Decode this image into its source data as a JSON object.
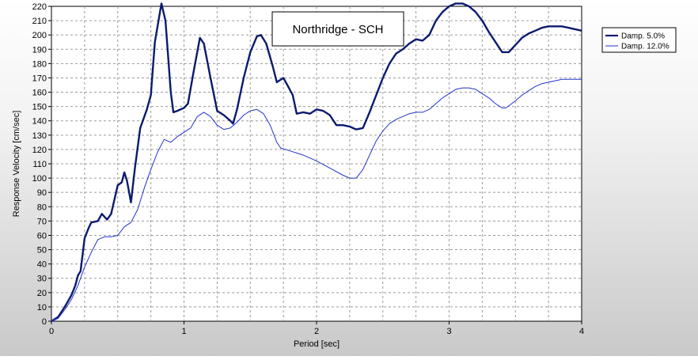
{
  "chart_data": {
    "type": "line",
    "title": "Northridge - SCH",
    "xlabel": "Period [sec]",
    "ylabel": "Response Velocity [cm/sec]",
    "xlim": [
      0,
      4
    ],
    "ylim": [
      0,
      220
    ],
    "xticks": [
      0,
      1,
      2,
      3,
      4
    ],
    "yticks": [
      0,
      10,
      20,
      30,
      40,
      50,
      60,
      70,
      80,
      90,
      100,
      110,
      120,
      130,
      140,
      150,
      160,
      170,
      180,
      190,
      200,
      210,
      220
    ],
    "grid": true,
    "legend_position": "top-right",
    "series": [
      {
        "name": "Damp. 5.0%",
        "color": "#0b1b6e",
        "points": [
          [
            0,
            0
          ],
          [
            0.05,
            3
          ],
          [
            0.1,
            10
          ],
          [
            0.15,
            18
          ],
          [
            0.18,
            25
          ],
          [
            0.2,
            32
          ],
          [
            0.22,
            35
          ],
          [
            0.25,
            58
          ],
          [
            0.28,
            65
          ],
          [
            0.3,
            69
          ],
          [
            0.35,
            70
          ],
          [
            0.38,
            75
          ],
          [
            0.42,
            71
          ],
          [
            0.45,
            75
          ],
          [
            0.5,
            95
          ],
          [
            0.53,
            97
          ],
          [
            0.55,
            104
          ],
          [
            0.57,
            98
          ],
          [
            0.6,
            83
          ],
          [
            0.63,
            107
          ],
          [
            0.67,
            135
          ],
          [
            0.72,
            148
          ],
          [
            0.75,
            158
          ],
          [
            0.78,
            195
          ],
          [
            0.83,
            222
          ],
          [
            0.86,
            210
          ],
          [
            0.9,
            160
          ],
          [
            0.92,
            146
          ],
          [
            0.95,
            147
          ],
          [
            1.0,
            149
          ],
          [
            1.03,
            152
          ],
          [
            1.07,
            173
          ],
          [
            1.12,
            198
          ],
          [
            1.15,
            194
          ],
          [
            1.2,
            170
          ],
          [
            1.25,
            147
          ],
          [
            1.3,
            144
          ],
          [
            1.35,
            140
          ],
          [
            1.37,
            138
          ],
          [
            1.4,
            148
          ],
          [
            1.45,
            170
          ],
          [
            1.5,
            188
          ],
          [
            1.55,
            199
          ],
          [
            1.58,
            200
          ],
          [
            1.62,
            194
          ],
          [
            1.67,
            178
          ],
          [
            1.7,
            167
          ],
          [
            1.75,
            170
          ],
          [
            1.78,
            165
          ],
          [
            1.82,
            158
          ],
          [
            1.85,
            145
          ],
          [
            1.9,
            146
          ],
          [
            1.95,
            145
          ],
          [
            2.0,
            148
          ],
          [
            2.05,
            147
          ],
          [
            2.1,
            144
          ],
          [
            2.15,
            137
          ],
          [
            2.2,
            137
          ],
          [
            2.25,
            136
          ],
          [
            2.3,
            134
          ],
          [
            2.35,
            135
          ],
          [
            2.4,
            146
          ],
          [
            2.45,
            158
          ],
          [
            2.5,
            170
          ],
          [
            2.55,
            180
          ],
          [
            2.6,
            187
          ],
          [
            2.65,
            190
          ],
          [
            2.7,
            194
          ],
          [
            2.75,
            197
          ],
          [
            2.8,
            196
          ],
          [
            2.85,
            200
          ],
          [
            2.9,
            210
          ],
          [
            2.95,
            216
          ],
          [
            3.0,
            220
          ],
          [
            3.05,
            222
          ],
          [
            3.1,
            222
          ],
          [
            3.15,
            220
          ],
          [
            3.2,
            216
          ],
          [
            3.25,
            210
          ],
          [
            3.3,
            202
          ],
          [
            3.35,
            195
          ],
          [
            3.4,
            188
          ],
          [
            3.45,
            188
          ],
          [
            3.5,
            193
          ],
          [
            3.55,
            198
          ],
          [
            3.6,
            201
          ],
          [
            3.65,
            203
          ],
          [
            3.7,
            205
          ],
          [
            3.75,
            206
          ],
          [
            3.8,
            206
          ],
          [
            3.85,
            206
          ],
          [
            3.9,
            205
          ],
          [
            3.95,
            204
          ],
          [
            4.0,
            203
          ]
        ]
      },
      {
        "name": "Damp. 12.0%",
        "color": "#2233cc",
        "points": [
          [
            0,
            0
          ],
          [
            0.05,
            2
          ],
          [
            0.1,
            8
          ],
          [
            0.15,
            15
          ],
          [
            0.2,
            25
          ],
          [
            0.25,
            38
          ],
          [
            0.3,
            48
          ],
          [
            0.35,
            57
          ],
          [
            0.4,
            59
          ],
          [
            0.45,
            59
          ],
          [
            0.5,
            60
          ],
          [
            0.55,
            66
          ],
          [
            0.6,
            69
          ],
          [
            0.65,
            78
          ],
          [
            0.7,
            93
          ],
          [
            0.75,
            106
          ],
          [
            0.8,
            118
          ],
          [
            0.85,
            127
          ],
          [
            0.9,
            125
          ],
          [
            0.95,
            129
          ],
          [
            1.0,
            132
          ],
          [
            1.05,
            135
          ],
          [
            1.1,
            143
          ],
          [
            1.15,
            146
          ],
          [
            1.2,
            143
          ],
          [
            1.25,
            137
          ],
          [
            1.3,
            134
          ],
          [
            1.35,
            135
          ],
          [
            1.4,
            139
          ],
          [
            1.45,
            144
          ],
          [
            1.5,
            147
          ],
          [
            1.55,
            148
          ],
          [
            1.6,
            145
          ],
          [
            1.65,
            137
          ],
          [
            1.7,
            125
          ],
          [
            1.73,
            121
          ],
          [
            1.8,
            119
          ],
          [
            1.9,
            116
          ],
          [
            2.0,
            112
          ],
          [
            2.1,
            107
          ],
          [
            2.2,
            102
          ],
          [
            2.25,
            100
          ],
          [
            2.3,
            100
          ],
          [
            2.35,
            106
          ],
          [
            2.4,
            116
          ],
          [
            2.45,
            126
          ],
          [
            2.5,
            133
          ],
          [
            2.55,
            138
          ],
          [
            2.6,
            141
          ],
          [
            2.65,
            143
          ],
          [
            2.7,
            145
          ],
          [
            2.75,
            146
          ],
          [
            2.8,
            146
          ],
          [
            2.85,
            148
          ],
          [
            2.9,
            152
          ],
          [
            2.95,
            156
          ],
          [
            3.0,
            159
          ],
          [
            3.05,
            162
          ],
          [
            3.1,
            163
          ],
          [
            3.15,
            163
          ],
          [
            3.2,
            162
          ],
          [
            3.25,
            159
          ],
          [
            3.3,
            156
          ],
          [
            3.35,
            152
          ],
          [
            3.4,
            149
          ],
          [
            3.43,
            149
          ],
          [
            3.5,
            154
          ],
          [
            3.55,
            158
          ],
          [
            3.6,
            161
          ],
          [
            3.65,
            164
          ],
          [
            3.7,
            166
          ],
          [
            3.75,
            167
          ],
          [
            3.8,
            168
          ],
          [
            3.85,
            169
          ],
          [
            3.9,
            169
          ],
          [
            3.95,
            169
          ],
          [
            4.0,
            169
          ]
        ]
      }
    ]
  }
}
